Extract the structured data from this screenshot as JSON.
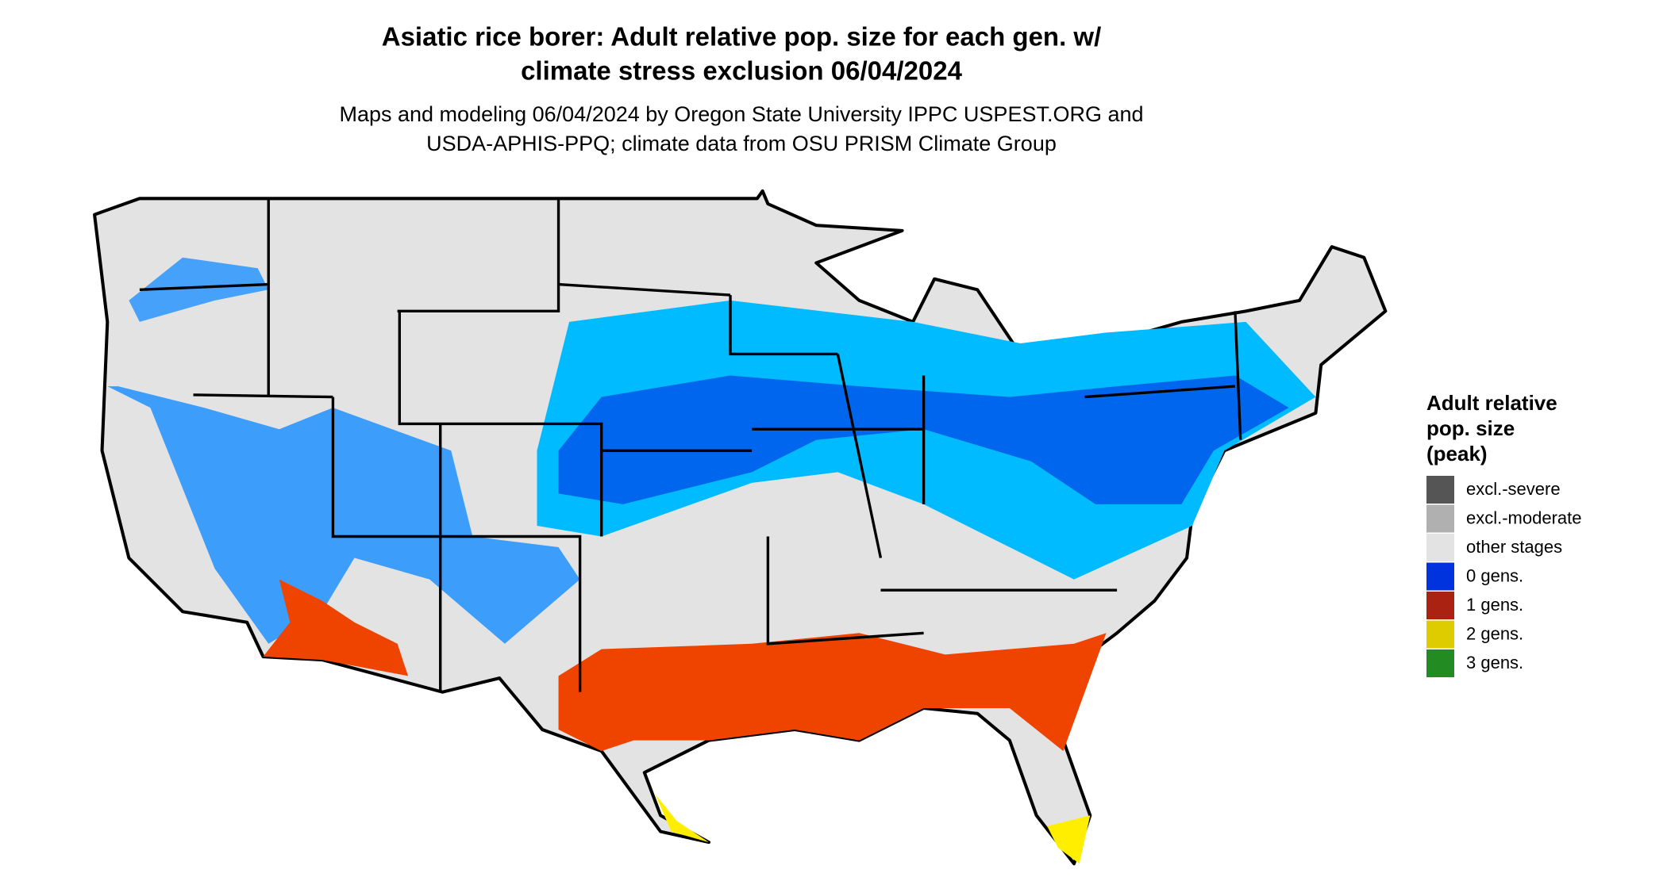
{
  "title_lines": [
    "Asiatic rice borer: Adult relative pop. size for each gen. w/",
    "climate stress exclusion 06/04/2024"
  ],
  "subtitle_lines": [
    "Maps and modeling 06/04/2024 by Oregon State University IPPC USPEST.ORG and",
    "USDA-APHIS-PPQ; climate data from OSU PRISM Climate Group"
  ],
  "legend": {
    "title_lines": [
      "Adult relative",
      "pop. size",
      "(peak)"
    ],
    "items": [
      {
        "label": "excl.-severe",
        "color": "#555555"
      },
      {
        "label": "excl.-moderate",
        "color": "#b0b0b0"
      },
      {
        "label": "other stages",
        "color": "#e3e3e3"
      },
      {
        "label": "0 gens.",
        "color": "#0033dd"
      },
      {
        "label": "1 gens.",
        "color": "#aa2211"
      },
      {
        "label": "2 gens.",
        "color": "#ddcc00"
      },
      {
        "label": "3 gens.",
        "color": "#228b22"
      }
    ]
  }
}
